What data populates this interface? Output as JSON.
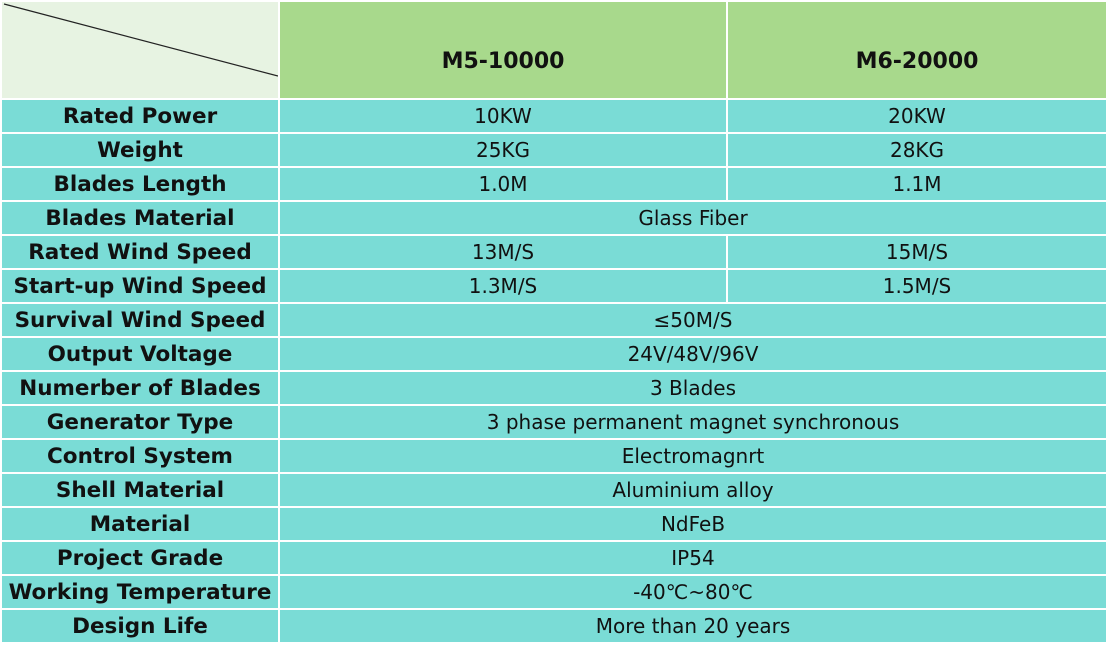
{
  "header": {
    "models": [
      "M5-10000",
      "M6-20000"
    ]
  },
  "rows": {
    "rated_power": {
      "label": "Rated Power",
      "m5": "10KW",
      "m6": "20KW"
    },
    "weight": {
      "label": "Weight",
      "m5": "25KG",
      "m6": "28KG"
    },
    "blades_length": {
      "label": "Blades Length",
      "m5": "1.0M",
      "m6": "1.1M"
    },
    "blades_material": {
      "label": "Blades Material",
      "value": "Glass Fiber"
    },
    "rated_wind_speed": {
      "label": "Rated Wind Speed",
      "m5": "13M/S",
      "m6": "15M/S"
    },
    "startup_wind_speed": {
      "label": "Start-up Wind Speed",
      "m5": "1.3M/S",
      "m6": "1.5M/S"
    },
    "survival_wind_speed": {
      "label": "Survival Wind Speed",
      "value": "≤50M/S"
    },
    "output_voltage": {
      "label": "Output Voltage",
      "value": "24V/48V/96V"
    },
    "number_of_blades": {
      "label": "Numerber of Blades",
      "value": "3 Blades"
    },
    "generator_type": {
      "label": "Generator Type",
      "value": "3 phase permanent magnet synchronous"
    },
    "control_system": {
      "label": "Control System",
      "value": "Electromagnrt"
    },
    "shell_material": {
      "label": "Shell Material",
      "value": "Aluminium alloy"
    },
    "material": {
      "label": "Material",
      "value": "NdFeB"
    },
    "project_grade": {
      "label": "Project Grade",
      "value": "IP54"
    },
    "working_temperature": {
      "label": "Working Temperature",
      "value": "-40℃~80℃"
    },
    "design_life": {
      "label": "Design Life",
      "value": "More than 20 years"
    }
  },
  "colors": {
    "header_bg": "#a8d98c",
    "corner_bg": "#e7f3e2",
    "body_bg": "#7adcd6",
    "grid_line": "#ffffff"
  }
}
